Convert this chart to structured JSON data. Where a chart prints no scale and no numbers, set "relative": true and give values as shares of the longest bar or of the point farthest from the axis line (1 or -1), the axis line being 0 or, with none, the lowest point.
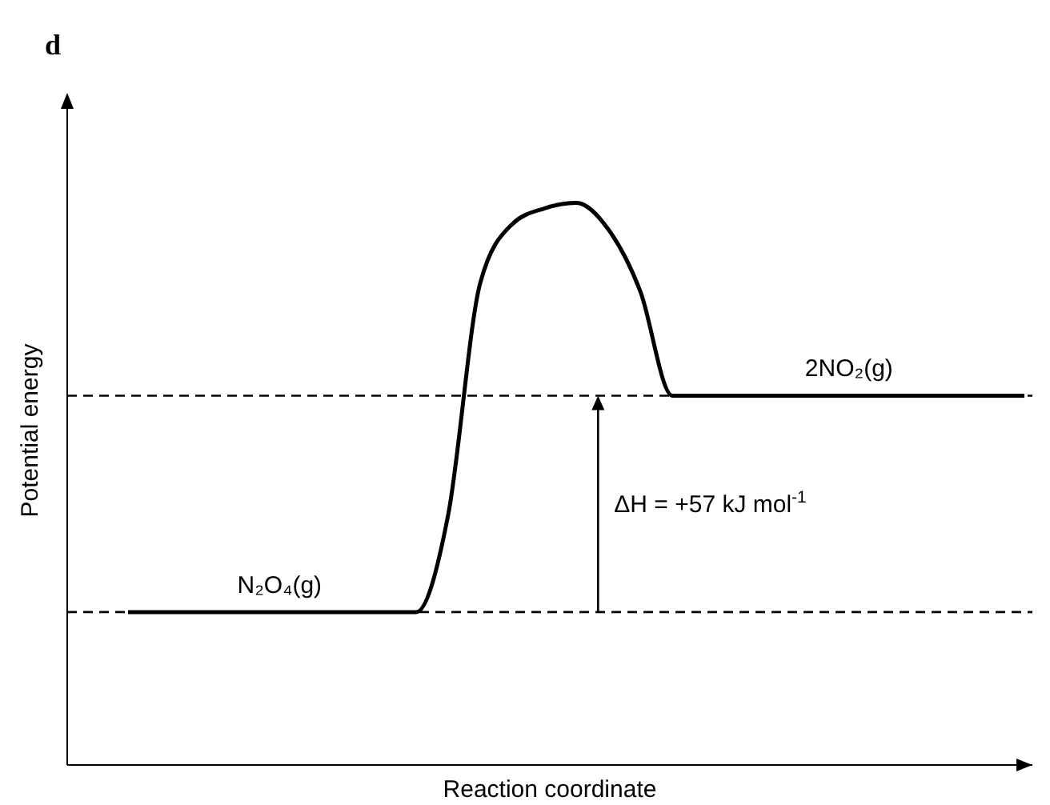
{
  "chart_data": {
    "type": "line",
    "title": "d",
    "xlabel": "Reaction coordinate",
    "ylabel": "Potential energy",
    "relative": true,
    "categories": [
      null,
      null,
      null,
      null,
      null,
      null,
      null,
      null,
      null,
      null,
      null,
      null,
      null,
      null,
      null,
      null,
      null,
      null,
      null,
      null,
      null,
      null,
      null,
      null,
      null,
      null,
      null,
      null,
      null
    ],
    "series": [
      {
        "color": "#000000",
        "values": [
          0.272,
          0.272,
          0.272,
          0.272,
          0.272,
          0.272,
          0.272,
          0.272,
          0.272,
          0.272,
          0.445,
          0.857,
          0.962,
          0.99,
          1,
          0.953,
          0.843,
          0.657,
          0.657,
          0.657,
          0.657,
          0.657,
          0.657,
          0.657,
          0.657,
          0.657,
          0.657,
          0.657,
          0.657
        ]
      }
    ],
    "ref_lines": [
      {
        "axis": "y",
        "value": 0.272,
        "label": "N₂O₄(g)",
        "line_style": "dashed",
        "color": "#000000"
      },
      {
        "axis": "y",
        "value": 0.657,
        "label": "2NO₂(g)",
        "line_style": "dashed",
        "color": "#000000"
      }
    ],
    "annotations": [
      "ΔH = +57 kJ mol$^{-1}$"
    ],
    "marker": "none",
    "line_style": "solid",
    "grid": false,
    "legend": false
  }
}
